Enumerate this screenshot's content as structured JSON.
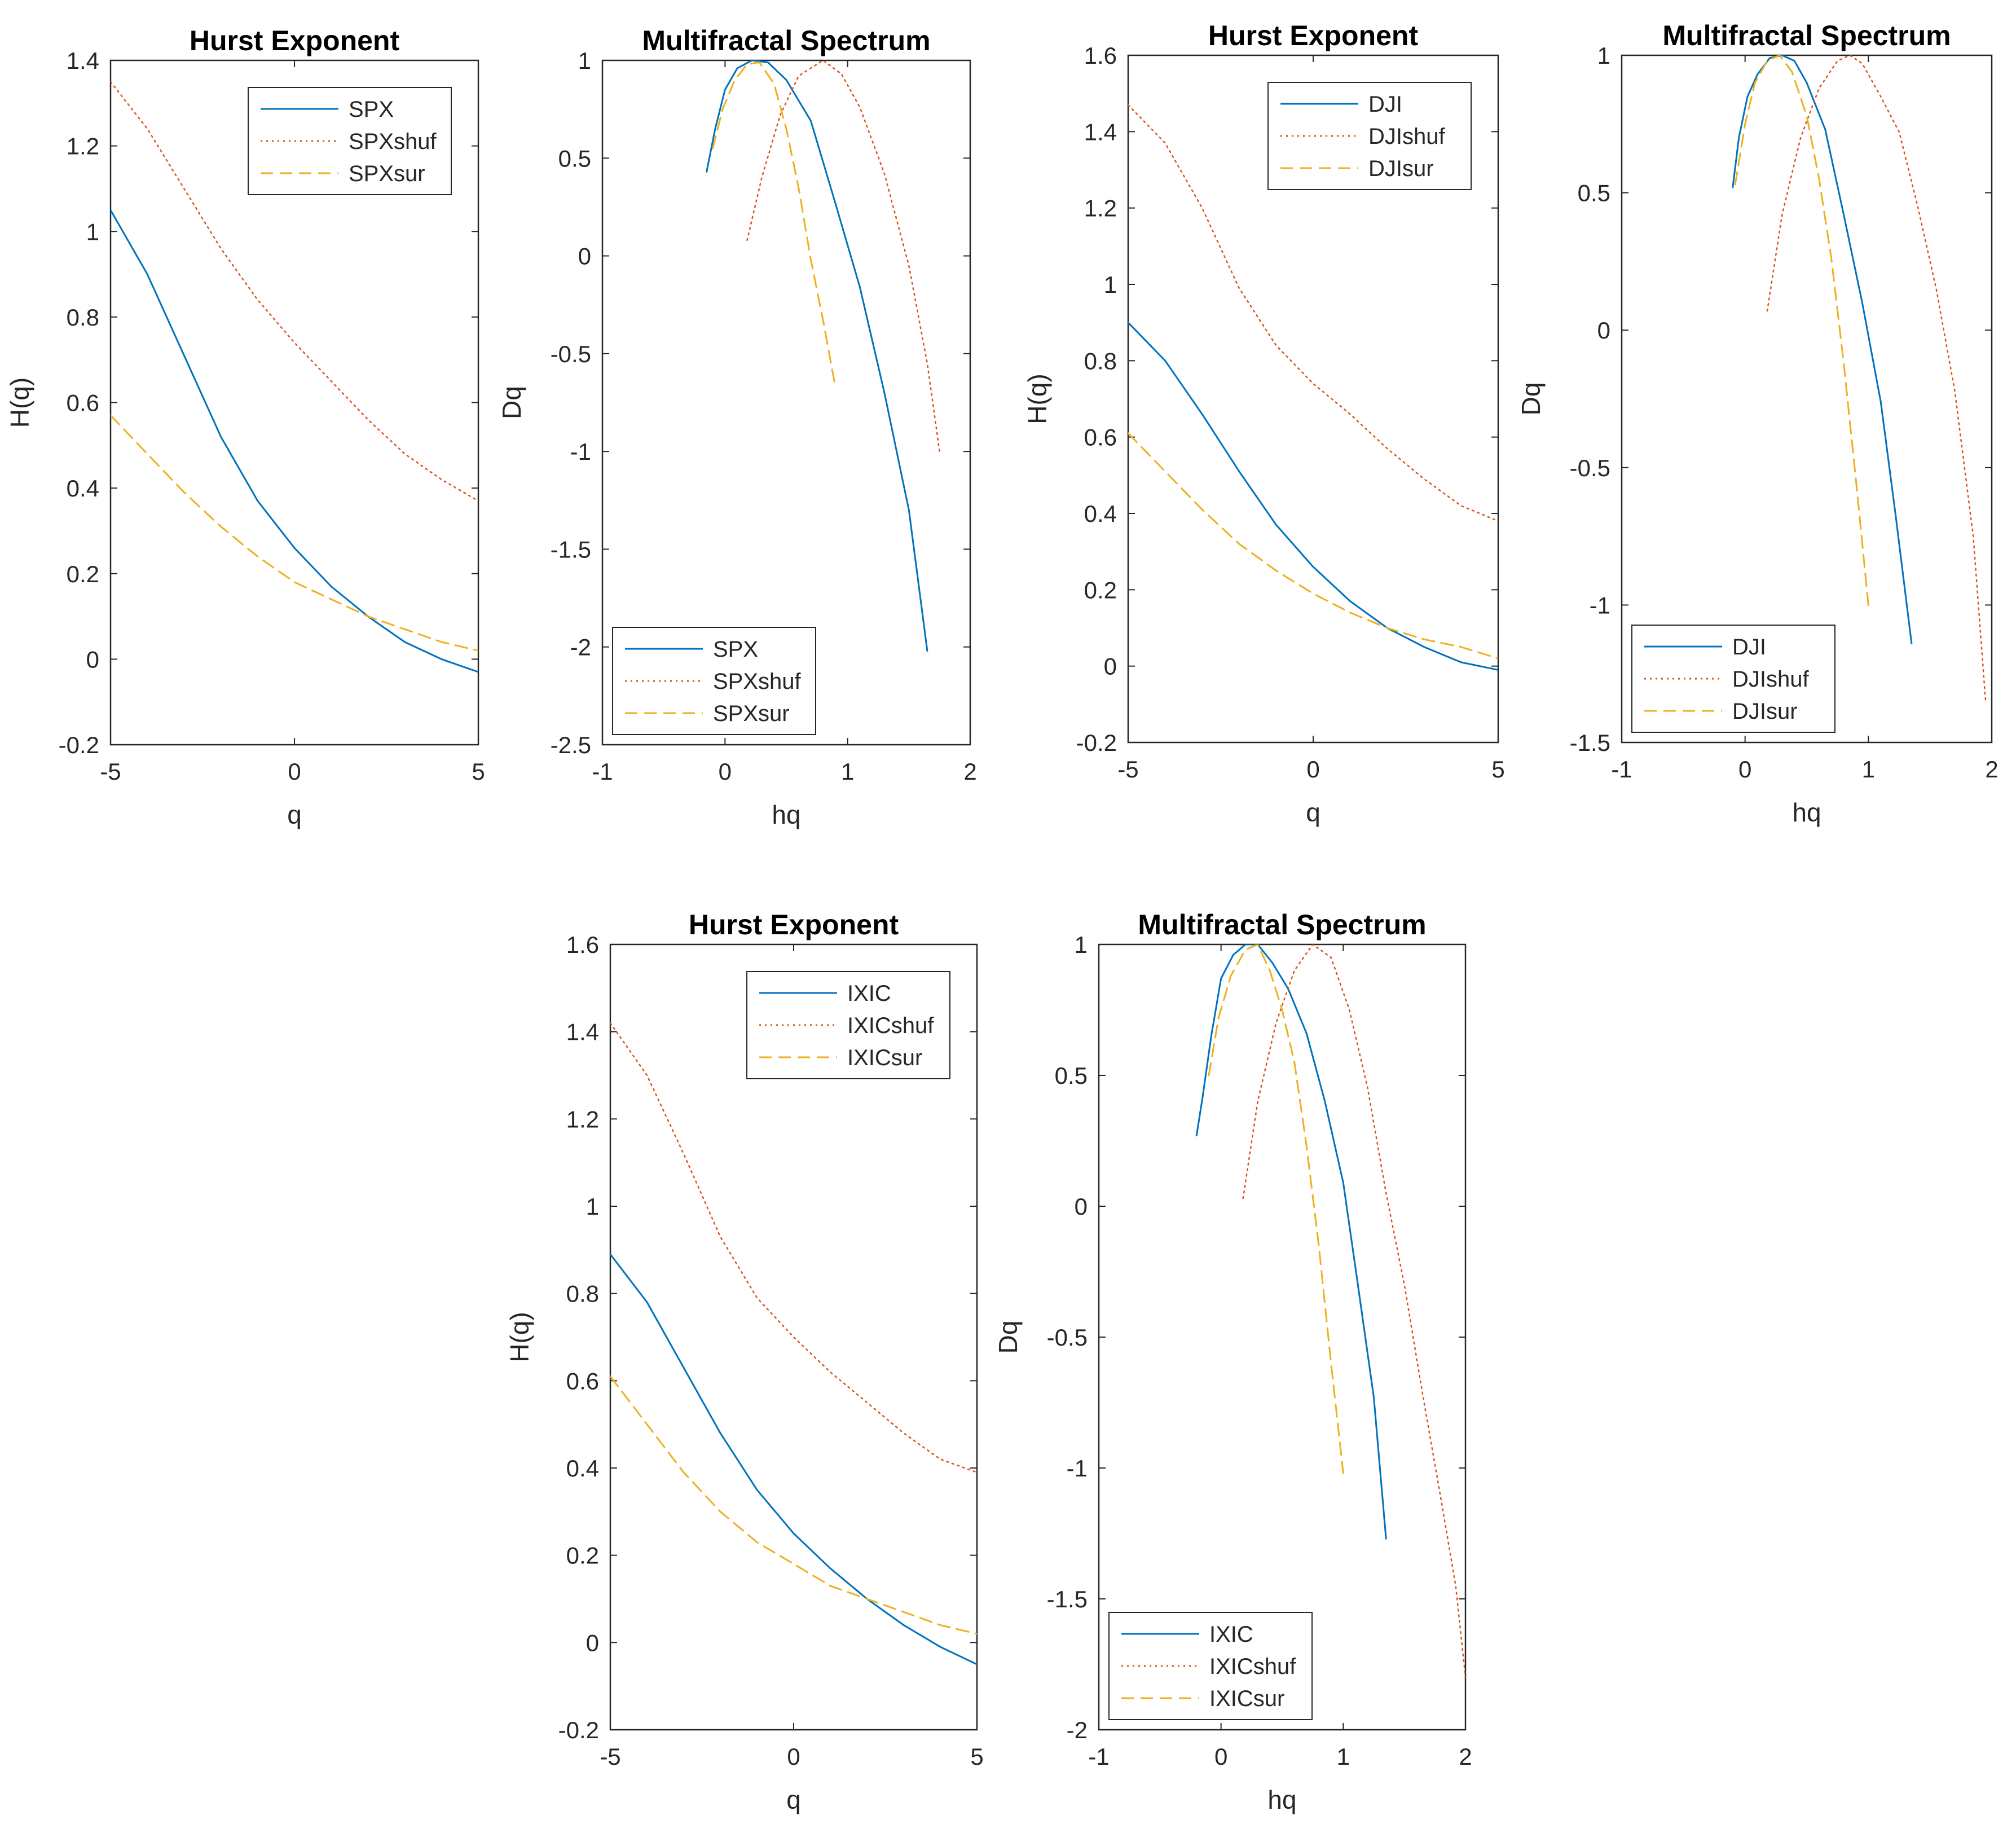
{
  "figure": {
    "description_colors": {
      "original": "#0072BD",
      "shuffled": "#D95319",
      "surrogate": "#EDB120",
      "axes": "#262626",
      "background": "#FFFFFF"
    }
  },
  "chart_data": [
    {
      "id": "spx-hurst",
      "type": "line",
      "title": "Hurst Exponent",
      "xlabel": "q",
      "ylabel": "H(q)",
      "xlim": [
        -5,
        5
      ],
      "ylim": [
        -0.2,
        1.4
      ],
      "xticks": [
        -5,
        0,
        5
      ],
      "yticks": [
        -0.2,
        0,
        0.2,
        0.4,
        0.6,
        0.8,
        1,
        1.2,
        1.4
      ],
      "xtick_labels": [
        "-5",
        "0",
        "5"
      ],
      "ytick_labels": [
        "-0.2",
        "0",
        "0.2",
        "0.4",
        "0.6",
        "0.8",
        "1",
        "1.2",
        "1.4"
      ],
      "legend_position": "top-right",
      "series": [
        {
          "name": "SPX",
          "style": "solid",
          "color": "#0072BD",
          "x": [
            -5,
            -4,
            -3,
            -2,
            -1,
            0,
            1,
            2,
            3,
            4,
            5
          ],
          "y": [
            1.05,
            0.9,
            0.71,
            0.52,
            0.37,
            0.26,
            0.17,
            0.1,
            0.04,
            0.0,
            -0.03
          ]
        },
        {
          "name": "SPXshuf",
          "style": "dotted",
          "color": "#D95319",
          "x": [
            -5,
            -4,
            -3,
            -2,
            -1,
            0,
            1,
            2,
            3,
            4,
            5
          ],
          "y": [
            1.35,
            1.24,
            1.1,
            0.96,
            0.84,
            0.74,
            0.65,
            0.56,
            0.48,
            0.42,
            0.37
          ]
        },
        {
          "name": "SPXsur",
          "style": "dashed",
          "color": "#EDB120",
          "x": [
            -5,
            -4,
            -3,
            -2,
            -1,
            0,
            1,
            2,
            3,
            4,
            5
          ],
          "y": [
            0.57,
            0.48,
            0.39,
            0.31,
            0.24,
            0.18,
            0.14,
            0.1,
            0.07,
            0.04,
            0.02
          ]
        }
      ]
    },
    {
      "id": "spx-spectrum",
      "type": "line",
      "title": "Multifractal Spectrum",
      "xlabel": "hq",
      "ylabel": "Dq",
      "xlim": [
        -1,
        2
      ],
      "ylim": [
        -2.5,
        1
      ],
      "xticks": [
        -1,
        0,
        1,
        2
      ],
      "yticks": [
        -2.5,
        -2,
        -1.5,
        -1,
        -0.5,
        0,
        0.5,
        1
      ],
      "xtick_labels": [
        "-1",
        "0",
        "1",
        "2"
      ],
      "ytick_labels": [
        "-2.5",
        "-2",
        "-1.5",
        "-1",
        "-0.5",
        "0",
        "0.5",
        "1"
      ],
      "legend_position": "bottom-left",
      "series": [
        {
          "name": "SPX",
          "style": "solid",
          "color": "#0072BD",
          "x": [
            -0.15,
            -0.08,
            0.0,
            0.1,
            0.22,
            0.35,
            0.5,
            0.7,
            0.9,
            1.1,
            1.3,
            1.5,
            1.65
          ],
          "y": [
            0.43,
            0.65,
            0.85,
            0.96,
            1.0,
            0.99,
            0.9,
            0.69,
            0.27,
            -0.16,
            -0.7,
            -1.3,
            -2.02
          ]
        },
        {
          "name": "SPXshuf",
          "style": "dotted",
          "color": "#D95319",
          "x": [
            0.18,
            0.3,
            0.45,
            0.6,
            0.8,
            0.95,
            1.1,
            1.3,
            1.5,
            1.65,
            1.75
          ],
          "y": [
            0.08,
            0.4,
            0.72,
            0.92,
            1.0,
            0.93,
            0.76,
            0.42,
            -0.05,
            -0.55,
            -1.0
          ]
        },
        {
          "name": "SPXsur",
          "style": "dashed",
          "color": "#EDB120",
          "x": [
            -0.1,
            -0.02,
            0.08,
            0.18,
            0.28,
            0.4,
            0.5,
            0.6,
            0.7,
            0.8,
            0.9
          ],
          "y": [
            0.55,
            0.75,
            0.9,
            0.98,
            0.99,
            0.88,
            0.65,
            0.35,
            -0.02,
            -0.33,
            -0.67
          ]
        }
      ]
    },
    {
      "id": "dji-hurst",
      "type": "line",
      "title": "Hurst Exponent",
      "xlabel": "q",
      "ylabel": "H(q)",
      "xlim": [
        -5,
        5
      ],
      "ylim": [
        -0.2,
        1.6
      ],
      "xticks": [
        -5,
        0,
        5
      ],
      "yticks": [
        -0.2,
        0,
        0.2,
        0.4,
        0.6,
        0.8,
        1,
        1.2,
        1.4,
        1.6
      ],
      "xtick_labels": [
        "-5",
        "0",
        "5"
      ],
      "ytick_labels": [
        "-0.2",
        "0",
        "0.2",
        "0.4",
        "0.6",
        "0.8",
        "1",
        "1.2",
        "1.4",
        "1.6"
      ],
      "legend_position": "top-right",
      "series": [
        {
          "name": "DJI",
          "style": "solid",
          "color": "#0072BD",
          "x": [
            -5,
            -4,
            -3,
            -2,
            -1,
            0,
            1,
            2,
            3,
            4,
            5
          ],
          "y": [
            0.9,
            0.8,
            0.66,
            0.51,
            0.37,
            0.26,
            0.17,
            0.1,
            0.05,
            0.01,
            -0.01
          ]
        },
        {
          "name": "DJIshuf",
          "style": "dotted",
          "color": "#D95319",
          "x": [
            -5,
            -4,
            -3,
            -2,
            -1,
            0,
            1,
            2,
            3,
            4,
            5
          ],
          "y": [
            1.47,
            1.37,
            1.2,
            0.99,
            0.84,
            0.74,
            0.66,
            0.57,
            0.49,
            0.42,
            0.38
          ]
        },
        {
          "name": "DJIsur",
          "style": "dashed",
          "color": "#EDB120",
          "x": [
            -5,
            -4,
            -3,
            -2,
            -1,
            0,
            1,
            2,
            3,
            4,
            5
          ],
          "y": [
            0.61,
            0.51,
            0.41,
            0.32,
            0.25,
            0.19,
            0.14,
            0.1,
            0.07,
            0.05,
            0.02
          ]
        }
      ]
    },
    {
      "id": "dji-spectrum",
      "type": "line",
      "title": "Multifractal Spectrum",
      "xlabel": "hq",
      "ylabel": "Dq",
      "xlim": [
        -1,
        2
      ],
      "ylim": [
        -1.5,
        1
      ],
      "xticks": [
        -1,
        0,
        1,
        2
      ],
      "yticks": [
        -1.5,
        -1,
        -0.5,
        0,
        0.5,
        1
      ],
      "xtick_labels": [
        "-1",
        "0",
        "1",
        "2"
      ],
      "ytick_labels": [
        "-1.5",
        "-1",
        "-0.5",
        "0",
        "0.5",
        "1"
      ],
      "legend_position": "bottom-left",
      "series": [
        {
          "name": "DJI",
          "style": "solid",
          "color": "#0072BD",
          "x": [
            -0.1,
            -0.05,
            0.02,
            0.1,
            0.2,
            0.3,
            0.4,
            0.5,
            0.65,
            0.8,
            0.95,
            1.1,
            1.22,
            1.35
          ],
          "y": [
            0.52,
            0.7,
            0.85,
            0.93,
            0.99,
            1.0,
            0.98,
            0.9,
            0.73,
            0.42,
            0.1,
            -0.26,
            -0.67,
            -1.14
          ]
        },
        {
          "name": "DJIshuf",
          "style": "dotted",
          "color": "#D95319",
          "x": [
            0.18,
            0.3,
            0.45,
            0.6,
            0.75,
            0.85,
            0.95,
            1.1,
            1.25,
            1.4,
            1.55,
            1.7,
            1.85,
            1.95
          ],
          "y": [
            0.07,
            0.42,
            0.7,
            0.88,
            0.98,
            1.0,
            0.97,
            0.85,
            0.72,
            0.45,
            0.15,
            -0.22,
            -0.75,
            -1.35
          ]
        },
        {
          "name": "DJIsur",
          "style": "dashed",
          "color": "#EDB120",
          "x": [
            -0.08,
            0.0,
            0.08,
            0.18,
            0.28,
            0.38,
            0.5,
            0.6,
            0.7,
            0.8,
            0.9,
            1.0
          ],
          "y": [
            0.53,
            0.75,
            0.9,
            0.98,
            1.0,
            0.94,
            0.78,
            0.55,
            0.26,
            -0.12,
            -0.55,
            -1.0
          ]
        }
      ]
    },
    {
      "id": "ixic-hurst",
      "type": "line",
      "title": "Hurst Exponent",
      "xlabel": "q",
      "ylabel": "H(q)",
      "xlim": [
        -5,
        5
      ],
      "ylim": [
        -0.2,
        1.6
      ],
      "xticks": [
        -5,
        0,
        5
      ],
      "yticks": [
        -0.2,
        0,
        0.2,
        0.4,
        0.6,
        0.8,
        1,
        1.2,
        1.4,
        1.6
      ],
      "xtick_labels": [
        "-5",
        "0",
        "5"
      ],
      "ytick_labels": [
        "-0.2",
        "0",
        "0.2",
        "0.4",
        "0.6",
        "0.8",
        "1",
        "1.2",
        "1.4",
        "1.6"
      ],
      "legend_position": "top-right",
      "series": [
        {
          "name": "IXIC",
          "style": "solid",
          "color": "#0072BD",
          "x": [
            -5,
            -4,
            -3,
            -2,
            -1,
            0,
            1,
            2,
            3,
            4,
            5
          ],
          "y": [
            0.89,
            0.78,
            0.63,
            0.48,
            0.35,
            0.25,
            0.17,
            0.1,
            0.04,
            -0.01,
            -0.05
          ]
        },
        {
          "name": "IXICshuf",
          "style": "dotted",
          "color": "#D95319",
          "x": [
            -5,
            -4,
            -3,
            -2,
            -1,
            0,
            1,
            2,
            3,
            4,
            5
          ],
          "y": [
            1.42,
            1.3,
            1.12,
            0.93,
            0.79,
            0.7,
            0.62,
            0.55,
            0.48,
            0.42,
            0.39
          ]
        },
        {
          "name": "IXICsur",
          "style": "dashed",
          "color": "#EDB120",
          "x": [
            -5,
            -4,
            -3,
            -2,
            -1,
            0,
            1,
            2,
            3,
            4,
            5
          ],
          "y": [
            0.61,
            0.5,
            0.39,
            0.3,
            0.23,
            0.18,
            0.13,
            0.1,
            0.07,
            0.04,
            0.02
          ]
        }
      ]
    },
    {
      "id": "ixic-spectrum",
      "type": "line",
      "title": "Multifractal Spectrum",
      "xlabel": "hq",
      "ylabel": "Dq",
      "xlim": [
        -1,
        2
      ],
      "ylim": [
        -2,
        1
      ],
      "xticks": [
        -1,
        0,
        1,
        2
      ],
      "yticks": [
        -2,
        -1.5,
        -1,
        -0.5,
        0,
        0.5,
        1
      ],
      "xtick_labels": [
        "-1",
        "0",
        "1",
        "2"
      ],
      "ytick_labels": [
        "-2",
        "-1.5",
        "-1",
        "-0.5",
        "0",
        "0.5",
        "1"
      ],
      "legend_position": "bottom-left",
      "series": [
        {
          "name": "IXIC",
          "style": "solid",
          "color": "#0072BD",
          "x": [
            -0.2,
            -0.15,
            -0.08,
            0.0,
            0.1,
            0.2,
            0.3,
            0.42,
            0.55,
            0.7,
            0.85,
            1.0,
            1.12,
            1.25,
            1.35
          ],
          "y": [
            0.27,
            0.42,
            0.65,
            0.87,
            0.96,
            1.0,
            1.0,
            0.93,
            0.83,
            0.66,
            0.4,
            0.09,
            -0.3,
            -0.73,
            -1.27
          ]
        },
        {
          "name": "IXICshuf",
          "style": "dotted",
          "color": "#D95319",
          "x": [
            0.18,
            0.3,
            0.45,
            0.6,
            0.75,
            0.9,
            1.05,
            1.2,
            1.35,
            1.5,
            1.65,
            1.8,
            1.92,
            2.0
          ],
          "y": [
            0.03,
            0.4,
            0.7,
            0.9,
            1.0,
            0.95,
            0.75,
            0.45,
            0.05,
            -0.3,
            -0.72,
            -1.12,
            -1.45,
            -1.8
          ]
        },
        {
          "name": "IXICsur",
          "style": "dashed",
          "color": "#EDB120",
          "x": [
            -0.1,
            -0.02,
            0.08,
            0.2,
            0.3,
            0.4,
            0.5,
            0.6,
            0.7,
            0.8,
            0.9,
            1.0
          ],
          "y": [
            0.5,
            0.72,
            0.88,
            0.98,
            1.0,
            0.9,
            0.75,
            0.55,
            0.23,
            -0.15,
            -0.6,
            -1.02
          ]
        }
      ]
    }
  ]
}
